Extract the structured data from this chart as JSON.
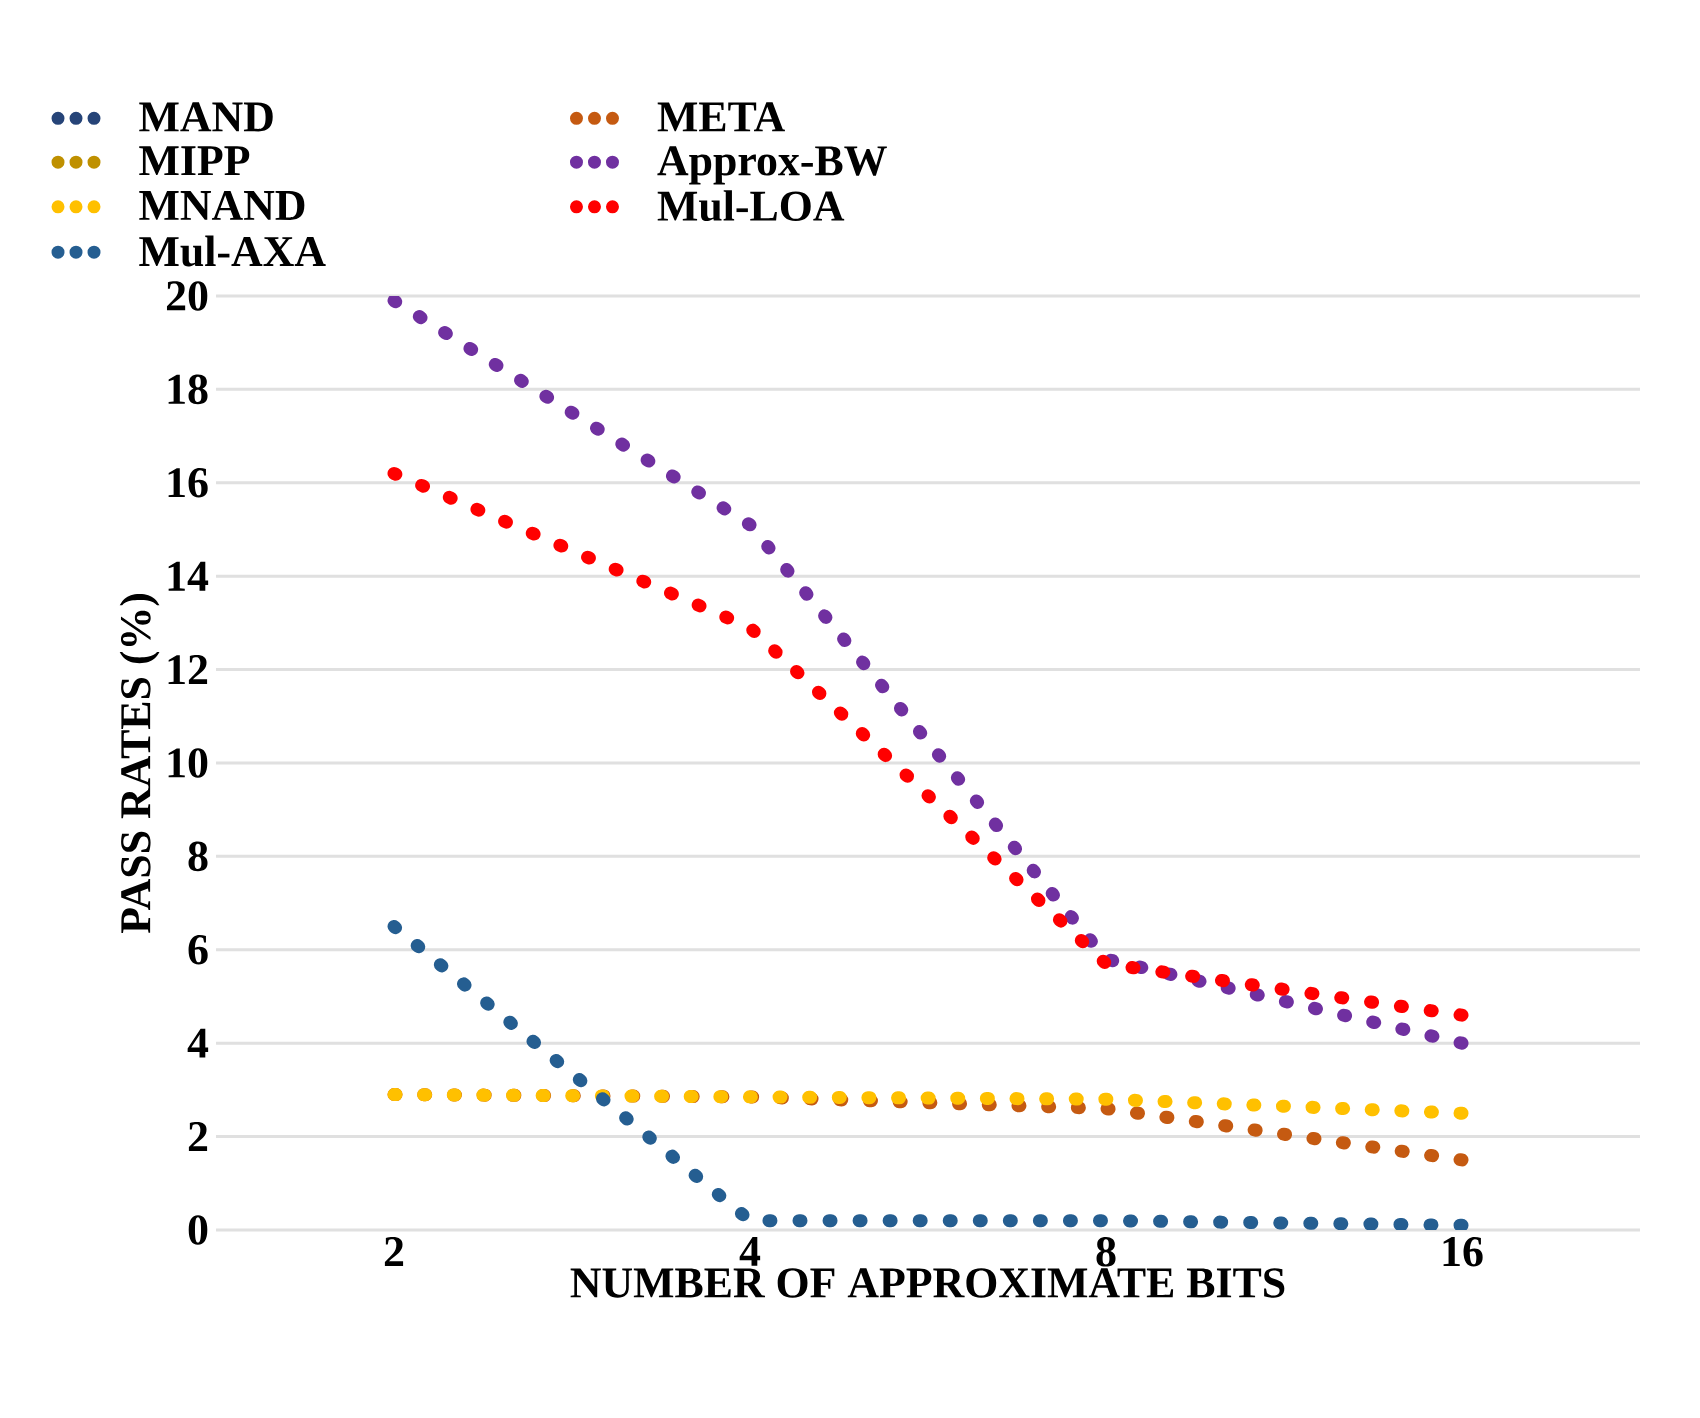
{
  "chart_data": {
    "type": "line",
    "xlabel": "NUMBER OF APPROXIMATE BITS",
    "ylabel": "PASS RATES (%)",
    "categories": [
      "2",
      "4",
      "8",
      "16"
    ],
    "ylim": [
      0,
      20
    ],
    "yticks": [
      0,
      2,
      4,
      6,
      8,
      10,
      12,
      14,
      16,
      18,
      20
    ],
    "grid": "y",
    "legend": "top left",
    "marker": "none",
    "line_style": "dotted",
    "series": [
      {
        "name": "MAND",
        "color": "#264478",
        "values": [
          null,
          null,
          null,
          null
        ]
      },
      {
        "name": "META",
        "color": "#c55a11",
        "values": [
          2.9,
          2.85,
          2.6,
          1.5
        ]
      },
      {
        "name": "MIPP",
        "color": "#bf9000",
        "values": [
          null,
          null,
          null,
          null
        ]
      },
      {
        "name": "Approx-BW",
        "color": "#7030a0",
        "values": [
          19.9,
          15.1,
          5.8,
          4.0
        ]
      },
      {
        "name": "MNAND",
        "color": "#ffc000",
        "values": [
          2.9,
          2.85,
          2.8,
          2.5
        ]
      },
      {
        "name": "Mul-LOA",
        "color": "#ff0000",
        "values": [
          16.2,
          12.9,
          5.7,
          4.6
        ]
      },
      {
        "name": "Mul-AXA",
        "color": "#255e91",
        "values": [
          6.5,
          0.2,
          0.2,
          0.1
        ]
      }
    ]
  }
}
